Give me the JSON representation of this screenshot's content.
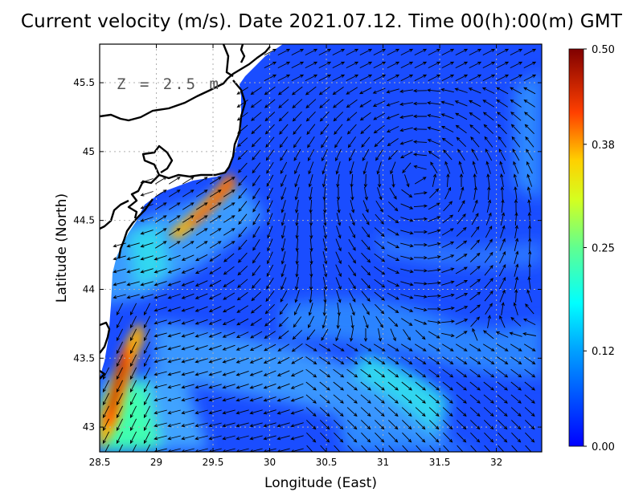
{
  "title": "Current velocity (m/s). Date 2021.07.12. Time 00(h):00(m) GMT",
  "depth_label": "Z = 2.5 m",
  "axes": {
    "xlabel": "Longitude (East)",
    "ylabel": "Latitude (North)",
    "x_ticks": [
      "28.5",
      "29",
      "29.5",
      "30",
      "30.5",
      "31",
      "31.5",
      "32"
    ],
    "y_ticks": [
      "45.5",
      "45",
      "44.5",
      "44",
      "43.5",
      "43"
    ],
    "xlim": [
      28.5,
      32.4
    ],
    "ylim": [
      42.82,
      45.78
    ],
    "grid": true
  },
  "colorbar": {
    "ticks": [
      "0.50",
      "0.38",
      "0.25",
      "0.12",
      "0.00"
    ],
    "range": [
      0.0,
      0.5
    ],
    "colormap": "jet"
  },
  "colors": {
    "land_fill": "#ffffff",
    "coastline": "#000000",
    "low_speed": "#1a50ff",
    "high_speed": "#8b0000"
  },
  "chart_data": {
    "type": "vector_field",
    "variable": "Current velocity",
    "units": "m/s",
    "date": "2021.07.12",
    "time": "00:00 GMT",
    "depth_m": 2.5,
    "features": [
      {
        "description": "strong coastal jet",
        "lon_range": [
          28.55,
          28.8
        ],
        "lat_range": [
          43.1,
          43.7
        ],
        "speed_ms": 0.48
      },
      {
        "description": "jet near cape",
        "lon_range": [
          29.2,
          29.7
        ],
        "lat_range": [
          44.55,
          44.85
        ],
        "speed_ms": 0.38
      },
      {
        "description": "cyclonic eddy",
        "center_lon": 31.3,
        "center_lat": 44.7,
        "speed_ms": 0.05
      },
      {
        "description": "southeastward stream",
        "lon_range": [
          30.8,
          31.8
        ],
        "lat_range": [
          42.9,
          43.4
        ],
        "speed_ms": 0.2
      }
    ]
  }
}
